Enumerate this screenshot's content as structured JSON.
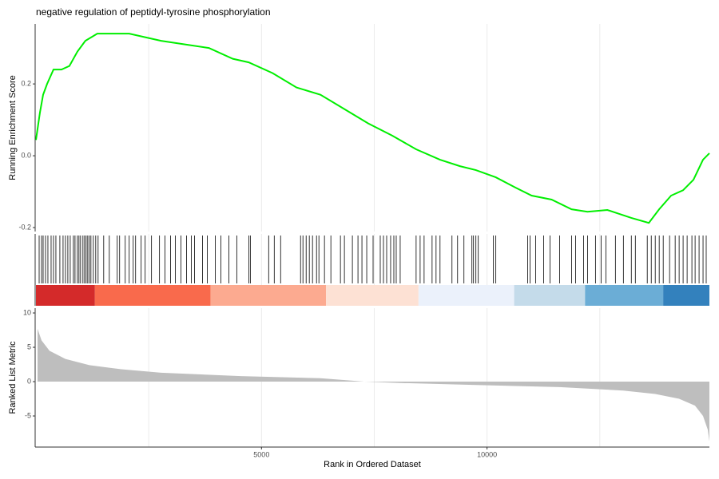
{
  "chart_data": [
    {
      "type": "line",
      "title": "negative regulation of peptidyl-tyrosine phosphorylation",
      "y_label": "Running Enrichment Score",
      "color": "#00ee00",
      "xlim": [
        0,
        14930
      ],
      "ylim": [
        -0.211,
        0.367
      ],
      "yticks": [
        {
          "value": -0.2,
          "label": "-0.2"
        },
        {
          "value": 0.0,
          "label": "0.0"
        },
        {
          "value": 0.2,
          "label": "0.2"
        }
      ],
      "x_grid": [
        2500,
        5000,
        7500,
        10000,
        12500
      ],
      "x": [
        0,
        88,
        159,
        247,
        389,
        565,
        742,
        919,
        1095,
        1360,
        1625,
        2067,
        2420,
        2774,
        3304,
        3834,
        4364,
        4717,
        5247,
        5777,
        6307,
        6837,
        7367,
        7898,
        8428,
        8958,
        9399,
        9753,
        10194,
        10636,
        10989,
        11431,
        11873,
        12226,
        12668,
        13198,
        13587,
        13816,
        14081,
        14346,
        14576,
        14788,
        14930
      ],
      "values": [
        0.044,
        0.12,
        0.17,
        0.2,
        0.24,
        0.24,
        0.25,
        0.29,
        0.32,
        0.34,
        0.34,
        0.34,
        0.33,
        0.32,
        0.31,
        0.3,
        0.27,
        0.26,
        0.23,
        0.19,
        0.17,
        0.13,
        0.09,
        0.056,
        0.018,
        -0.011,
        -0.029,
        -0.04,
        -0.06,
        -0.089,
        -0.111,
        -0.122,
        -0.149,
        -0.156,
        -0.151,
        -0.173,
        -0.187,
        -0.149,
        -0.111,
        -0.096,
        -0.067,
        -0.011,
        0.007
      ]
    },
    {
      "type": "rug",
      "xlim": [
        0,
        14930
      ],
      "color": "#000000",
      "x_grid": [
        2500,
        5000,
        7500,
        10000,
        12500
      ],
      "hits": [
        71,
        124,
        159,
        212,
        265,
        336,
        389,
        442,
        530,
        601,
        654,
        707,
        760,
        830,
        866,
        919,
        954,
        989,
        1042,
        1078,
        1113,
        1148,
        1184,
        1219,
        1272,
        1325,
        1378,
        1502,
        1626,
        1802,
        1855,
        1979,
        2067,
        2156,
        2209,
        2332,
        2421,
        2562,
        2739,
        2862,
        2986,
        3092,
        3216,
        3339,
        3445,
        3516,
        3692,
        3799,
        3975,
        4099,
        4276,
        4452,
        4718,
        4753,
        5159,
        5283,
        5424,
        5866,
        5919,
        5990,
        6060,
        6131,
        6220,
        6273,
        6396,
        6538,
        6750,
        6838,
        7015,
        7139,
        7227,
        7333,
        7474,
        7633,
        7704,
        7775,
        7863,
        7934,
        7987,
        8075,
        8428,
        8517,
        8605,
        8782,
        8870,
        8958,
        9223,
        9347,
        9488,
        9665,
        9700,
        9753,
        9806,
        10142,
        10195,
        10901,
        10955,
        11078,
        11255,
        11397,
        11609,
        11874,
        11962,
        12139,
        12228,
        12404,
        12528,
        12634,
        12846,
        13023,
        13199,
        13288,
        13552,
        13641,
        13729,
        13817,
        13906,
        14047,
        14171,
        14259,
        14347,
        14436,
        14542,
        14613,
        14701,
        14789,
        14859
      ],
      "band_edges": [
        0,
        1307,
        3869,
        6431,
        8481,
        10601,
        12173,
        13905,
        14930
      ],
      "band_colors": [
        "#d42a2a",
        "#f96a4c",
        "#fcaa90",
        "#fde1d4",
        "#ebf1fb",
        "#c4dbea",
        "#6badd6",
        "#3381bd"
      ]
    },
    {
      "type": "area",
      "x_label": "Rank in Ordered Dataset",
      "y_label": "Ranked List Metric",
      "color": "#bebebe",
      "xlim": [
        0,
        14930
      ],
      "ylim": [
        -9.53,
        10.7
      ],
      "xticks": [
        5000,
        10000
      ],
      "yticks": [
        -5,
        0,
        5,
        10
      ],
      "x_grid": [
        2500,
        5000,
        7500,
        10000,
        12500
      ],
      "x": [
        35,
        124,
        300,
        654,
        1184,
        1890,
        2774,
        4541,
        6307,
        7279,
        8074,
        9841,
        11608,
        13021,
        13728,
        14258,
        14611,
        14788,
        14894,
        14930
      ],
      "values": [
        7.7,
        6.0,
        4.5,
        3.3,
        2.4,
        1.8,
        1.3,
        0.8,
        0.5,
        0.0,
        -0.2,
        -0.5,
        -0.8,
        -1.3,
        -1.8,
        -2.5,
        -3.5,
        -5.0,
        -7.0,
        -8.7
      ]
    }
  ]
}
